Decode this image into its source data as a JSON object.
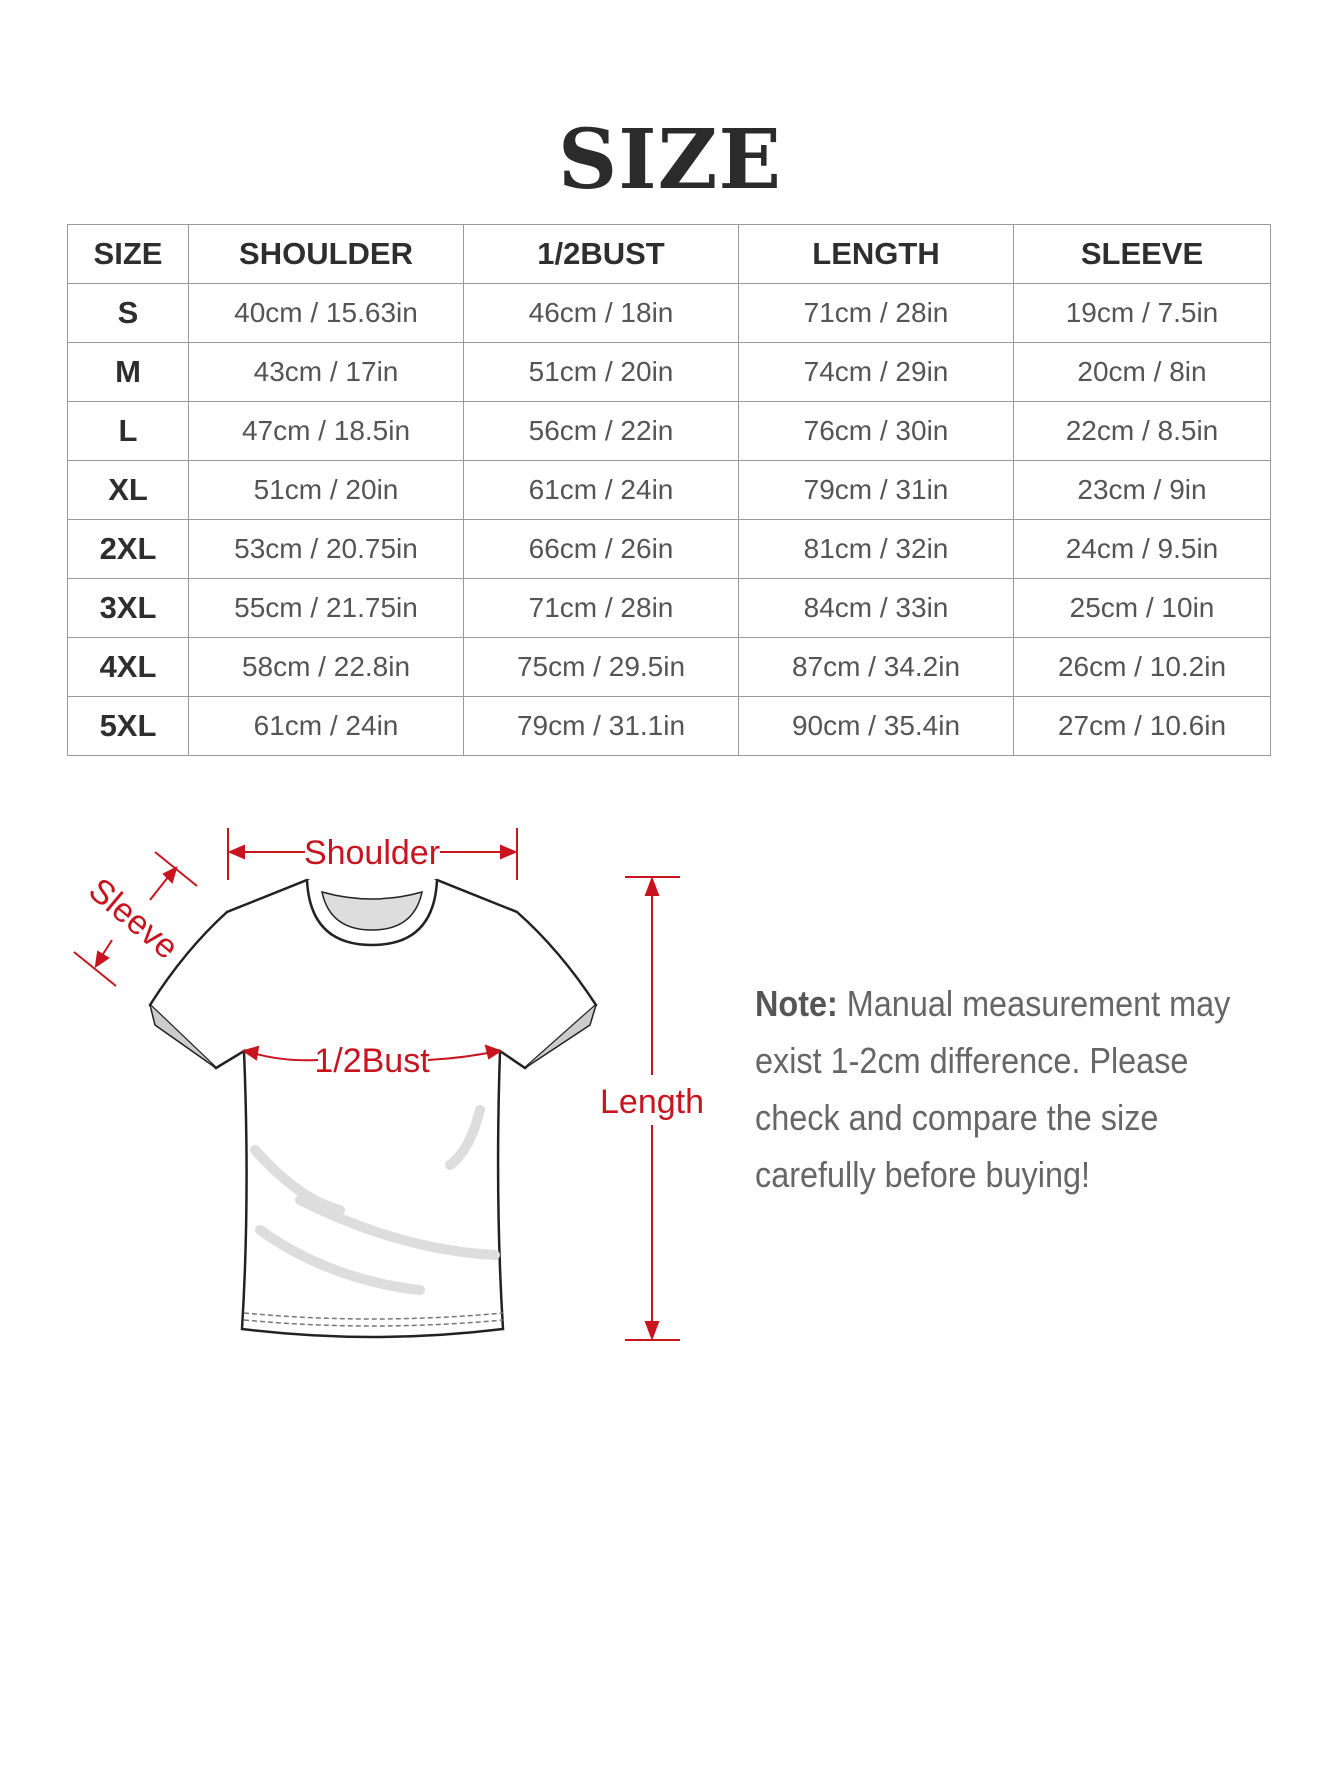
{
  "title": "SIZE",
  "table": {
    "headers": [
      "SIZE",
      "SHOULDER",
      "1/2BUST",
      "LENGTH",
      "SLEEVE"
    ],
    "rows": [
      [
        "S",
        "40cm / 15.63in",
        "46cm / 18in",
        "71cm / 28in",
        "19cm / 7.5in"
      ],
      [
        "M",
        "43cm / 17in",
        "51cm / 20in",
        "74cm / 29in",
        "20cm / 8in"
      ],
      [
        "L",
        "47cm / 18.5in",
        "56cm / 22in",
        "76cm / 30in",
        "22cm / 8.5in"
      ],
      [
        "XL",
        "51cm / 20in",
        "61cm / 24in",
        "79cm / 31in",
        "23cm / 9in"
      ],
      [
        "2XL",
        "53cm / 20.75in",
        "66cm / 26in",
        "81cm / 32in",
        "24cm / 9.5in"
      ],
      [
        "3XL",
        "55cm / 21.75in",
        "71cm / 28in",
        "84cm / 33in",
        "25cm / 10in"
      ],
      [
        "4XL",
        "58cm / 22.8in",
        "75cm / 29.5in",
        "87cm / 34.2in",
        "26cm / 10.2in"
      ],
      [
        "5XL",
        "61cm / 24in",
        "79cm / 31.1in",
        "90cm / 35.4in",
        "27cm / 10.6in"
      ]
    ]
  },
  "diagram": {
    "shoulder": "Shoulder",
    "sleeve": "Sleeve",
    "bust": "1/2Bust",
    "length": "Length",
    "accent": "#c8141e"
  },
  "note": {
    "label": "Note:",
    "text": " Manual measurement may",
    "line2": "exist 1-2cm difference. Please",
    "line3": "check and compare the size",
    "line4": "carefully before buying!"
  }
}
